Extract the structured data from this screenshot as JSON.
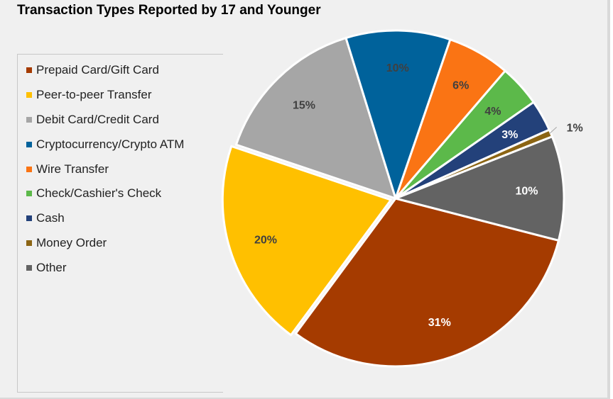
{
  "chart_data": {
    "type": "pie",
    "title": "Transaction Types Reported by 17 and Younger",
    "legend_position": "left",
    "slices": [
      {
        "name": "Prepaid Card/Gift Card",
        "value": 31,
        "label": "31%",
        "color": "#a53b00",
        "label_color": "#ffffff"
      },
      {
        "name": "Peer-to-peer Transfer",
        "value": 20,
        "label": "20%",
        "color": "#ffc000",
        "label_color": "#404040"
      },
      {
        "name": "Debit Card/Credit Card",
        "value": 15,
        "label": "15%",
        "color": "#a6a6a6",
        "label_color": "#404040"
      },
      {
        "name": "Cryptocurrency/Crypto ATM",
        "value": 10,
        "label": "10%",
        "color": "#00629b",
        "label_color": "#404040"
      },
      {
        "name": "Wire Transfer",
        "value": 6,
        "label": "6%",
        "color": "#fa7414",
        "label_color": "#404040"
      },
      {
        "name": "Check/Cashier's Check",
        "value": 4,
        "label": "4%",
        "color": "#5cb94a",
        "label_color": "#404040"
      },
      {
        "name": "Cash",
        "value": 3,
        "label": "3%",
        "color": "#23417a",
        "label_color": "#ffffff"
      },
      {
        "name": "Money Order",
        "value": 0.7,
        "label": "1%",
        "color": "#8c6514",
        "label_color": "#404040"
      },
      {
        "name": "Other",
        "value": 10,
        "label": "10%",
        "color": "#636363",
        "label_color": "#ffffff"
      }
    ]
  }
}
